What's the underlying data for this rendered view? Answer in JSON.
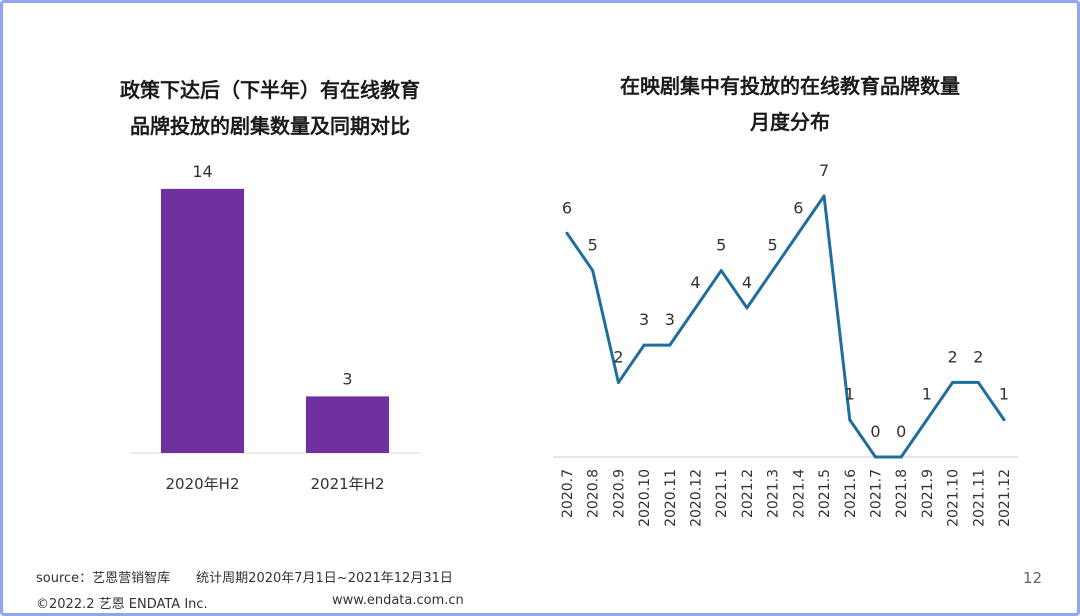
{
  "chart_data": [
    {
      "type": "bar",
      "title_line1": "政策下达后（下半年）有在线教育",
      "title_line2": "品牌投放的剧集数量及同期对比",
      "categories": [
        "2020年H2",
        "2021年H2"
      ],
      "values": [
        14,
        3
      ],
      "value_labels": [
        "14",
        "3"
      ],
      "bar_color": "#7030a0",
      "ylim": [
        0,
        15
      ],
      "grid": false
    },
    {
      "type": "line",
      "title_line1": "在映剧集中有投放的在线教育品牌数量",
      "title_line2": "月度分布",
      "categories": [
        "2020.7",
        "2020.8",
        "2020.9",
        "2020.10",
        "2020.11",
        "2020.12",
        "2021.1",
        "2021.2",
        "2021.3",
        "2021.4",
        "2021.5",
        "2021.6",
        "2021.7",
        "2021.8",
        "2021.9",
        "2021.10",
        "2021.11",
        "2021.12"
      ],
      "values": [
        6,
        5,
        2,
        3,
        3,
        4,
        5,
        4,
        5,
        6,
        7,
        1,
        0,
        0,
        1,
        2,
        2,
        1
      ],
      "value_labels": [
        "6",
        "5",
        "2",
        "3",
        "3",
        "4",
        "5",
        "4",
        "5",
        "6",
        "7",
        "1",
        "0",
        "0",
        "1",
        "2",
        "2",
        "1"
      ],
      "line_color": "#1f6e9e",
      "ylim": [
        0,
        7
      ],
      "grid": false
    }
  ],
  "footer": {
    "source": "source：艺恩营销智库　　统计周期2020年7月1日~2021年12月31日",
    "copyright": "©2022.2 艺恩 ENDATA Inc.",
    "url": "www.endata.com.cn",
    "page": "12"
  }
}
